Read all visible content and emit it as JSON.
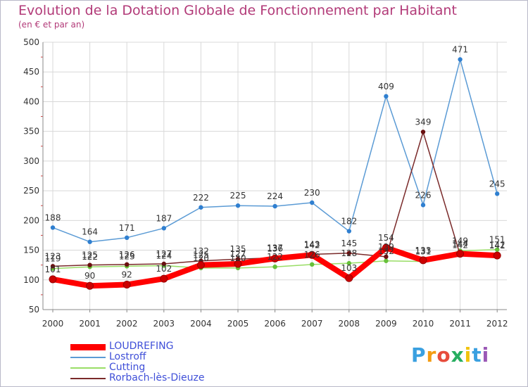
{
  "chart_data": {
    "type": "line",
    "title": "Evolution de la Dotation Globale de Fonctionnement par Habitant",
    "subtitle": "(en € et par an)",
    "x": [
      "2000",
      "2001",
      "2002",
      "2003",
      "2004",
      "2005",
      "2006",
      "2007",
      "2008",
      "2009",
      "2010",
      "2011",
      "2012"
    ],
    "ylim": [
      50,
      500
    ],
    "yticks": [
      "50",
      "100",
      "150",
      "200",
      "250",
      "300",
      "350",
      "400",
      "450",
      "500"
    ],
    "grid": true,
    "legend_position": "bottom-left",
    "series": [
      {
        "name": "LOUDREFING",
        "color": "#ff0000",
        "marker": "#cc0000",
        "values": [
          101,
          90,
          92,
          102,
          125,
          127,
          136,
          142,
          103,
          154,
          133,
          144,
          141
        ],
        "labels": [
          "101",
          "90",
          "92",
          "102",
          "125",
          "127",
          "136",
          "142",
          "103",
          "154",
          "133",
          "144",
          "141"
        ]
      },
      {
        "name": "Lostroff",
        "color": "#5b9bd5",
        "marker": "#2f7fd0",
        "values": [
          188,
          164,
          171,
          187,
          222,
          225,
          224,
          230,
          182,
          409,
          226,
          471,
          245
        ],
        "labels": [
          "188",
          "164",
          "171",
          "187",
          "222",
          "225",
          "224",
          "230",
          "182",
          "409",
          "226",
          "471",
          "245"
        ]
      },
      {
        "name": "Cutting",
        "color": "#99dd66",
        "marker": "#66c03a",
        "values": [
          119,
          122,
          123,
          124,
          120,
          120,
          122,
          126,
          128,
          132,
          131,
          149,
          151
        ],
        "labels": [
          "119",
          "122",
          "123",
          "124",
          "120",
          "120",
          "122",
          "126",
          "128",
          "132",
          "131",
          "149",
          "151"
        ]
      },
      {
        "name": "Rorbach-lès-Dieuze",
        "color": "#7a2a2a",
        "marker": "#6a1010",
        "values": [
          123,
          125,
          126,
          127,
          132,
          135,
          137,
          143,
          145,
          139,
          349,
          142,
          142
        ],
        "labels": [
          "123",
          "125",
          "126",
          "127",
          "132",
          "135",
          "137",
          "143",
          "145",
          "139",
          "349",
          "142",
          "142"
        ]
      }
    ]
  },
  "logo": {
    "text": "Proxiti",
    "letters": [
      "P",
      "r",
      "o",
      "x",
      "i",
      "t",
      "i"
    ]
  }
}
